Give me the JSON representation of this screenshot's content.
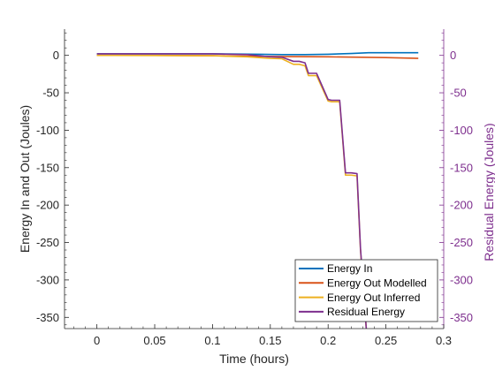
{
  "chart_data": {
    "type": "line",
    "title": "",
    "xlabel": "Time (hours)",
    "ylabel_left": "Energy In and Out (Joules)",
    "ylabel_right": "Residual Energy (Joules)",
    "xlim": [
      -0.028,
      0.3
    ],
    "ylim_left": [
      -365,
      35
    ],
    "ylim_right": [
      -365,
      35
    ],
    "x_ticks": [
      0,
      0.05,
      0.1,
      0.15,
      0.2,
      0.25,
      0.3
    ],
    "x_tick_labels": [
      "0",
      "0.05",
      "0.1",
      "0.15",
      "0.2",
      "0.25",
      "0.3"
    ],
    "y_ticks_left": [
      0,
      -50,
      -100,
      -150,
      -200,
      -250,
      -300,
      -350
    ],
    "y_tick_labels_left": [
      "0",
      "-50",
      "-100",
      "-150",
      "-200",
      "-250",
      "-300",
      "-350"
    ],
    "y_ticks_right": [
      0,
      -50,
      -100,
      -150,
      -200,
      -250,
      -300,
      -350
    ],
    "y_tick_labels_right": [
      "0",
      "-50",
      "-100",
      "-150",
      "-200",
      "-250",
      "-300",
      "-350"
    ],
    "grid": false,
    "legend_position": "bottom-right",
    "right_axis_color": "#7e2f8e",
    "series": [
      {
        "name": "Energy In",
        "color": "#0072bd",
        "axis": "left",
        "x": [
          0,
          0.05,
          0.1,
          0.14,
          0.16,
          0.18,
          0.2,
          0.22,
          0.235,
          0.25,
          0.278
        ],
        "y": [
          2,
          2,
          2,
          1.5,
          1,
          1,
          1.5,
          2.5,
          3.5,
          3.5,
          3.5
        ]
      },
      {
        "name": "Energy Out Modelled",
        "color": "#d95319",
        "axis": "left",
        "x": [
          0,
          0.05,
          0.1,
          0.15,
          0.2,
          0.25,
          0.278
        ],
        "y": [
          0,
          0,
          -0.5,
          -1.5,
          -2,
          -3,
          -4
        ]
      },
      {
        "name": "Energy Out Inferred",
        "color": "#edb120",
        "axis": "left",
        "x": [
          0,
          0.1,
          0.13,
          0.15,
          0.16,
          0.17,
          0.175,
          0.18,
          0.183,
          0.19,
          0.2,
          0.203,
          0.21,
          0.215,
          0.22,
          0.225,
          0.228,
          0.233
        ],
        "y": [
          0,
          -0.5,
          -2,
          -4,
          -4.5,
          -12,
          -12,
          -14,
          -27,
          -27,
          -61,
          -62,
          -62,
          -160,
          -160,
          -161,
          -260,
          -365
        ]
      },
      {
        "name": "Residual Energy",
        "color": "#7e2f8e",
        "axis": "right",
        "x": [
          0,
          0.1,
          0.13,
          0.15,
          0.16,
          0.17,
          0.175,
          0.18,
          0.183,
          0.19,
          0.2,
          0.203,
          0.21,
          0.215,
          0.22,
          0.225,
          0.228,
          0.233
        ],
        "y": [
          2,
          2,
          1,
          -2,
          -2.5,
          -8,
          -8,
          -10,
          -24,
          -24,
          -59,
          -60,
          -60,
          -157,
          -157,
          -158,
          -258,
          -365
        ]
      }
    ]
  }
}
